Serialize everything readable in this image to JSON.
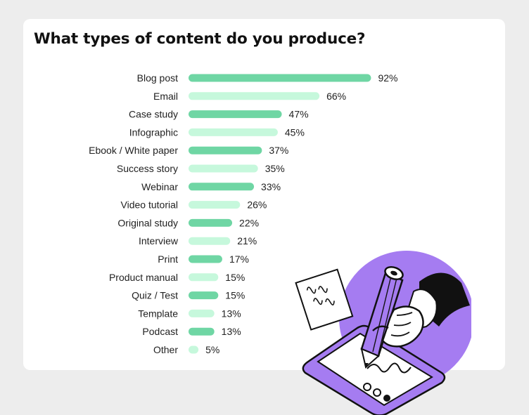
{
  "chart_data": {
    "type": "bar",
    "orientation": "horizontal",
    "title": "What types of content do you produce?",
    "unit": "%",
    "xlim": [
      0,
      100
    ],
    "grid": false,
    "categories": [
      "Blog post",
      "Email",
      "Case study",
      "Infographic",
      "Ebook / White paper",
      "Success story",
      "Webinar",
      "Video tutorial",
      "Original study",
      "Interview",
      "Print",
      "Product manual",
      "Quiz / Test",
      "Template",
      "Podcast",
      "Other"
    ],
    "values": [
      92,
      66,
      47,
      45,
      37,
      35,
      33,
      26,
      22,
      21,
      17,
      15,
      15,
      13,
      13,
      5
    ],
    "value_labels": [
      "92%",
      "66%",
      "47%",
      "45%",
      "37%",
      "35%",
      "33%",
      "26%",
      "22%",
      "21%",
      "17%",
      "15%",
      "15%",
      "13%",
      "13%",
      "5%"
    ],
    "colors": {
      "dark": "#6fd6a4",
      "light": "#c6f8dc"
    }
  },
  "illustration": {
    "icon": "hand-writing-on-tablet-illustration",
    "colors": {
      "circle": "#a57cf1",
      "outline": "#111111",
      "white": "#ffffff"
    }
  }
}
